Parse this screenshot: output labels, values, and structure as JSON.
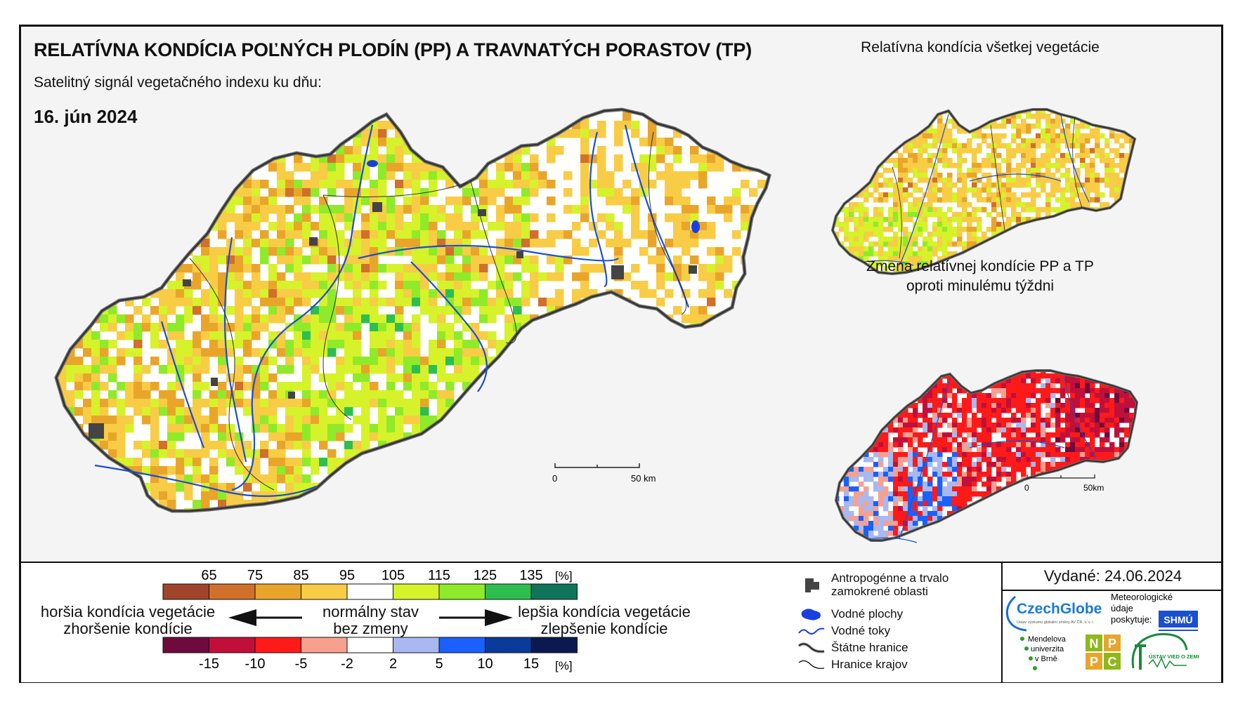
{
  "title": "RELATÍVNA KONDÍCIA POĽNÝCH PLODÍN (PP) A TRAVNATÝCH PORASTOV (TP)",
  "subtitle": "Satelitný signál vegetačného indexu ku dňu:",
  "date": "16. jún 2024",
  "inset1_title": "Relatívna kondícia všetkej vegetácie",
  "inset2_title_line1": "Zmena relatívnej kondície PP a TP",
  "inset2_title_line2": "oproti minulému týždni",
  "main_scale": {
    "zero": "0",
    "end": "50 km"
  },
  "inset_scale": {
    "zero": "0",
    "end": "50km"
  },
  "legend_condition": {
    "unit": "[%]",
    "ticks": [
      "65",
      "75",
      "85",
      "95",
      "105",
      "115",
      "125",
      "135"
    ],
    "colors": [
      "#a0442a",
      "#d0702a",
      "#e9a52a",
      "#f8cc45",
      "#ffffff",
      "#d6f22a",
      "#8fea2a",
      "#2ebe50",
      "#10745a"
    ]
  },
  "legend_change": {
    "unit": "[%]",
    "ticks": [
      "-15",
      "-10",
      "-5",
      "-2",
      "2",
      "5",
      "10",
      "15"
    ],
    "colors": [
      "#6e0a3c",
      "#c0103a",
      "#ff1a1a",
      "#f8a090",
      "#ffffff",
      "#a8b8f0",
      "#1a60ff",
      "#0a3a9a",
      "#0a1a50"
    ]
  },
  "worse_line1": "horšia kondícia vegetácie",
  "worse_line2": "zhoršenie kondície",
  "normal_line1": "normálny stav",
  "normal_line2": "bez zmeny",
  "better_line1": "lepšia kondícia vegetácie",
  "better_line2": "zlepšenie kondície",
  "symbols": {
    "anthropogenic_line1": "Antropogénne a trvalo",
    "anthropogenic_line2": "zamokrené oblasti",
    "water_bodies": "Vodné plochy",
    "water_streams": "Vodné toky",
    "state_borders": "Štátne hranice",
    "region_borders": "Hranice krajov"
  },
  "issued": "Vydané: 24.06.2024",
  "logos": {
    "czechglobe": "CzechGlobe",
    "czechglobe_sub": "Ústav výzkumu globální změny AV ČR, v. v. i.",
    "meteo_line1": "Meteorologické",
    "meteo_line2": "údaje",
    "meteo_line3": "poskytuje:",
    "shmu": "SHMÚ",
    "mendel_line1": "Mendelova",
    "mendel_line2": "univerzita",
    "mendel_line3": "v Brně",
    "nppc": [
      "N",
      "P",
      "P",
      "C"
    ],
    "uvz": "ÚSTAV VIED O ZEMI"
  },
  "colors": {
    "frame": "#111111",
    "background": "#f4f4f4",
    "river": "#1a4fd0",
    "urban": "#444444"
  }
}
